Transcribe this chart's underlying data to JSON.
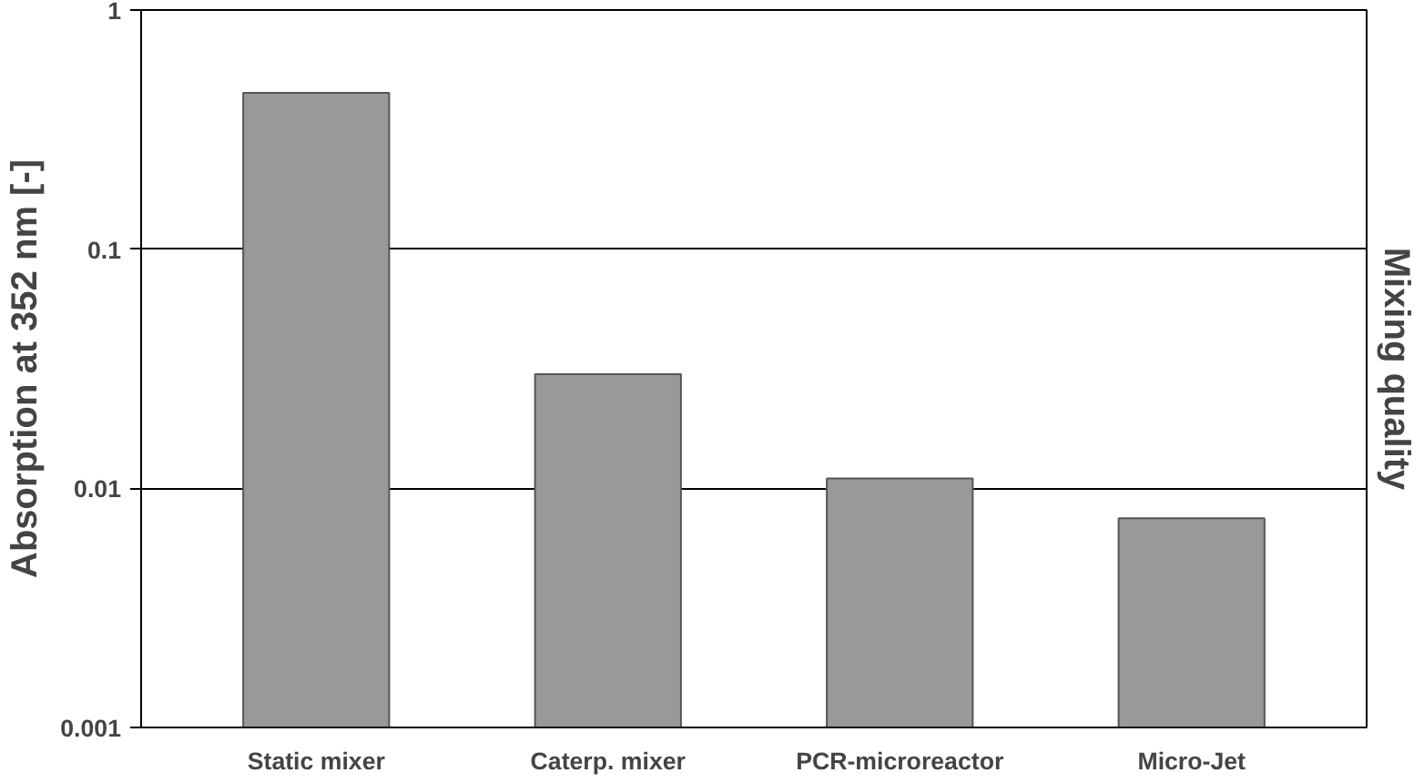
{
  "chart_data": {
    "type": "bar",
    "ylabel": "Absorption at 352 nm [-]",
    "y2label": "Mixing quality",
    "categories": [
      "Static mixer",
      "Caterp. mixer",
      "PCR-microreactor",
      "Micro-Jet"
    ],
    "values": [
      0.45,
      0.03,
      0.011,
      0.0075
    ],
    "color": "#999999",
    "log": true,
    "ylim": [
      0.001,
      1
    ],
    "yticks": [
      {
        "value": 0.001,
        "label": "0.001"
      },
      {
        "value": 0.01,
        "label": "0.01"
      },
      {
        "value": 0.1,
        "label": "0.1"
      },
      {
        "value": 1,
        "label": "1"
      }
    ],
    "grid": "y"
  }
}
